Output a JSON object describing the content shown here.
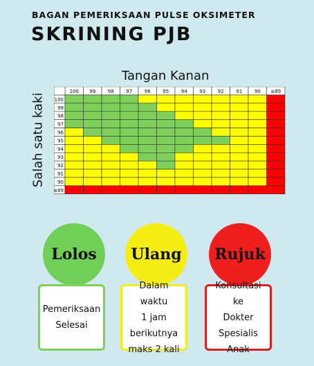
{
  "header": {
    "subtitle": "BAGAN PEMERIKSAAN PULSE OKSIMETER",
    "title": "SKRINING PJB"
  },
  "chart_data": {
    "type": "table",
    "top_axis_label": "Tangan Kanan",
    "side_axis_label": "Salah satu kaki",
    "columns": [
      "100",
      "99",
      "98",
      "97",
      "96",
      "95",
      "94",
      "93",
      "92",
      "91",
      "90",
      "≤89"
    ],
    "rows": [
      "100",
      "99",
      "98",
      "97",
      "96",
      "95",
      "94",
      "93",
      "92",
      "91",
      "90",
      "≤89"
    ],
    "legend": {
      "green": "Lolos",
      "yellow": "Ulang",
      "red": "Rujuk"
    },
    "cells": [
      [
        "G",
        "G",
        "G",
        "G",
        "Y",
        "Y",
        "Y",
        "Y",
        "Y",
        "Y",
        "Y",
        "R"
      ],
      [
        "G",
        "G",
        "G",
        "G",
        "G",
        "Y",
        "Y",
        "Y",
        "Y",
        "Y",
        "Y",
        "R"
      ],
      [
        "G",
        "G",
        "G",
        "G",
        "G",
        "G",
        "Y",
        "Y",
        "Y",
        "Y",
        "Y",
        "R"
      ],
      [
        "G",
        "G",
        "G",
        "G",
        "G",
        "G",
        "G",
        "Y",
        "Y",
        "Y",
        "Y",
        "R"
      ],
      [
        "Y",
        "G",
        "G",
        "G",
        "G",
        "G",
        "G",
        "G",
        "Y",
        "Y",
        "Y",
        "R"
      ],
      [
        "Y",
        "Y",
        "G",
        "G",
        "G",
        "G",
        "G",
        "G",
        "G",
        "Y",
        "Y",
        "R"
      ],
      [
        "Y",
        "Y",
        "Y",
        "G",
        "G",
        "G",
        "G",
        "Y",
        "Y",
        "Y",
        "Y",
        "R"
      ],
      [
        "Y",
        "Y",
        "Y",
        "Y",
        "G",
        "G",
        "Y",
        "Y",
        "Y",
        "Y",
        "Y",
        "R"
      ],
      [
        "Y",
        "Y",
        "Y",
        "Y",
        "Y",
        "G",
        "Y",
        "Y",
        "Y",
        "Y",
        "Y",
        "R"
      ],
      [
        "Y",
        "Y",
        "Y",
        "Y",
        "Y",
        "Y",
        "Y",
        "Y",
        "Y",
        "Y",
        "Y",
        "R"
      ],
      [
        "Y",
        "Y",
        "Y",
        "Y",
        "Y",
        "Y",
        "Y",
        "Y",
        "Y",
        "Y",
        "Y",
        "R"
      ],
      [
        "R",
        "R",
        "R",
        "R",
        "R",
        "R",
        "R",
        "R",
        "R",
        "R",
        "R",
        "R"
      ]
    ]
  },
  "colors": {
    "background": "#cfe9ef",
    "green": "#7ed05a",
    "yellow": "#ffff00",
    "red": "#ff0000",
    "circle_green": "#70cf57",
    "circle_yellow": "#f5ee14",
    "circle_red": "#ef1f1f",
    "border_green": "#7ed05a",
    "border_yellow": "#f2ed1a",
    "border_red": "#d82020"
  },
  "outcomes": [
    {
      "label": "Lolos",
      "description": [
        "Pemeriksaan",
        "Selesai"
      ]
    },
    {
      "label": "Ulang",
      "description": [
        "Dalam waktu",
        "1 jam",
        "berikutnya",
        "maks 2 kali"
      ]
    },
    {
      "label": "Rujuk",
      "description": [
        "Konsultasi ke",
        "Dokter",
        "Spesialis",
        "Anak"
      ]
    }
  ]
}
